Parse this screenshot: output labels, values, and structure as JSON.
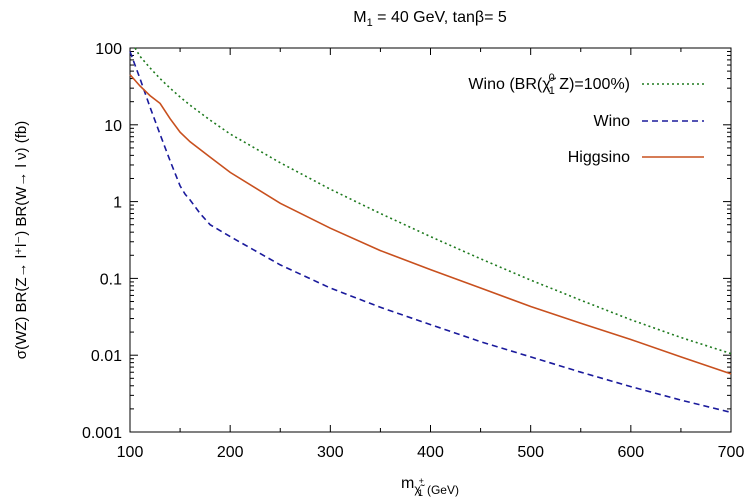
{
  "chart_data": {
    "type": "line",
    "title": "M",
    "title_sub": "1",
    "title_rest": " = 40 GeV, tanβ= 5",
    "xlabel_main": "m",
    "xlabel_sub": "χ̃",
    "xlabel_sup": "+",
    "xlabel_sub2": "1",
    "xlabel_unit": "(GeV)",
    "ylabel": "σ(WZ) BR(Z→ l⁺l⁻) BR(W→ l ν) (fb)",
    "xlim": [
      100,
      700
    ],
    "ylim": [
      0.001,
      100
    ],
    "yscale": "log",
    "grid": false,
    "legend_position": "top-right",
    "x_ticks": [
      100,
      200,
      300,
      400,
      500,
      600,
      700
    ],
    "x_tick_labels": [
      "100",
      "200",
      "300",
      "400",
      "500",
      "600",
      "700"
    ],
    "y_ticks": [
      0.001,
      0.01,
      0.1,
      1,
      10,
      100
    ],
    "y_tick_labels": [
      "0.001",
      "0.01",
      "0.1",
      "1",
      "10",
      "100"
    ],
    "series": [
      {
        "name": "Wino (BR(χ̃⁰₁ Z)=100%)",
        "legend_parts": {
          "pre": "Wino (BR(",
          "chi": "χ̃",
          "sup": "0",
          "sub": "1",
          "post": " Z)=100%)"
        },
        "color": "#1e7a1e",
        "dash": "2,3",
        "x": [
          105,
          110,
          120,
          130,
          140,
          150,
          160,
          180,
          200,
          250,
          300,
          350,
          400,
          450,
          500,
          550,
          600,
          650,
          700
        ],
        "y": [
          100,
          78,
          55,
          40,
          30,
          23,
          18,
          11.5,
          7.6,
          3.2,
          1.45,
          0.7,
          0.35,
          0.18,
          0.095,
          0.052,
          0.029,
          0.017,
          0.0105
        ]
      },
      {
        "name": "Wino",
        "color": "#1a1a9c",
        "dash": "6,4",
        "x": [
          100,
          110,
          120,
          130,
          140,
          150,
          155,
          160,
          170,
          180,
          200,
          250,
          300,
          350,
          400,
          450,
          500,
          550,
          600,
          650,
          700
        ],
        "y": [
          90,
          40,
          17,
          7.5,
          3.4,
          1.6,
          1.25,
          1.05,
          0.7,
          0.5,
          0.35,
          0.15,
          0.075,
          0.042,
          0.025,
          0.015,
          0.0095,
          0.006,
          0.0039,
          0.0026,
          0.0018
        ]
      },
      {
        "name": "Higgsino",
        "color": "#c8501e",
        "dash": "",
        "x": [
          100,
          110,
          120,
          130,
          140,
          150,
          160,
          180,
          200,
          250,
          300,
          350,
          400,
          450,
          500,
          550,
          600,
          650,
          700
        ],
        "y": [
          45,
          32,
          24,
          19,
          12,
          8,
          6,
          3.8,
          2.4,
          0.95,
          0.45,
          0.23,
          0.13,
          0.075,
          0.043,
          0.026,
          0.016,
          0.0095,
          0.0057
        ]
      }
    ]
  }
}
